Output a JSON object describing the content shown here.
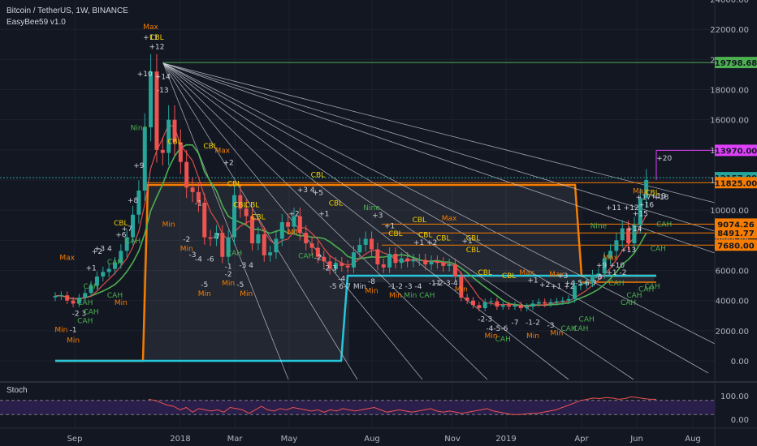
{
  "header": {
    "symbol_line": "Bitcoin / TetherUS, 1W, BINANCE",
    "indicator": "EasyBee59 v1.0",
    "stoch_label": "Stoch"
  },
  "colors": {
    "background": "#131722",
    "up": "#26a69a",
    "down": "#ef5350",
    "orange": "#f57c00",
    "cyan": "#26c6da",
    "green": "#4caf50",
    "magenta": "#e040fb",
    "stoch": "#ef5350",
    "stoch_band": "#2a1e4a"
  },
  "chart_data": [
    {
      "type": "candlestick",
      "ylim": [
        -800,
        24000
      ],
      "price_labels": [
        "24000.00",
        "22000.00",
        "20000.00",
        "18000.00",
        "16000.00",
        "14000.00",
        "12000.00",
        "10000.00",
        "8000.00",
        "6000.00",
        "4000.00",
        "2000.00",
        "0.00"
      ],
      "x_labels": [
        "Sep",
        "2018",
        "Mar",
        "May",
        "Aug",
        "Nov",
        "2019",
        "Apr",
        "Jun",
        "Aug"
      ],
      "level_badges": [
        {
          "label": "19798.68",
          "value": 19798.68,
          "color": "#4caf50"
        },
        {
          "label": "13970.00",
          "value": 13970,
          "color": "#e040fb"
        },
        {
          "label": "12157.99",
          "value": 12158,
          "color": "#26a69a"
        },
        {
          "label": "11825.00",
          "value": 11825,
          "color": "#f57c00"
        },
        {
          "label": "9074.26",
          "value": 9074,
          "color": "#f57c00"
        },
        {
          "label": "8491.77",
          "value": 8492,
          "color": "#f57c00"
        },
        {
          "label": "7680.00",
          "value": 7680,
          "color": "#f57c00"
        }
      ],
      "closes": [
        4300,
        4350,
        4000,
        3800,
        4200,
        4500,
        5000,
        5600,
        5900,
        6100,
        6500,
        7300,
        8200,
        9700,
        11300,
        15500,
        19200,
        14000,
        13800,
        16000,
        14500,
        13200,
        11500,
        11200,
        10500,
        8200,
        8100,
        8500,
        6900,
        8200,
        11000,
        10100,
        9600,
        7800,
        8400,
        7000,
        7200,
        8100,
        9200,
        8900,
        9600,
        8500,
        7800,
        7500,
        6900,
        6600,
        6100,
        6500,
        6300,
        6200,
        7200,
        7700,
        8100,
        7400,
        6400,
        6200,
        7100,
        6500,
        6800,
        6600,
        6700,
        6700,
        6400,
        6600,
        6500,
        6300,
        6400,
        5600,
        4200,
        4000,
        3700,
        3500,
        3900,
        3950,
        3600,
        3700,
        3600,
        3700,
        3500,
        3600,
        3800,
        3900,
        3800,
        3900,
        3950,
        4000,
        4100,
        5000,
        5100,
        5200,
        5700,
        5800,
        6800,
        7300,
        8000,
        8800,
        7800,
        9000,
        10800,
        12000
      ],
      "annotations": [
        {
          "t": "Max",
          "i": 16,
          "v": 22000,
          "c": "#f57c00"
        },
        {
          "t": "+11",
          "i": 16,
          "v": 21300,
          "c": "#d1d4dc"
        },
        {
          "t": "CBL",
          "i": 17,
          "v": 21300,
          "c": "#f5d300"
        },
        {
          "t": "+12",
          "i": 17,
          "v": 20700,
          "c": "#d1d4dc"
        },
        {
          "t": "+10",
          "i": 15,
          "v": 18900,
          "c": "#d1d4dc"
        },
        {
          "t": "+14",
          "i": 18,
          "v": 18700,
          "c": "#d1d4dc"
        },
        {
          "t": "-13",
          "i": 18,
          "v": 17800,
          "c": "#d1d4dc"
        },
        {
          "t": "Nine",
          "i": 14,
          "v": 15300,
          "c": "#4caf50"
        },
        {
          "t": "+9",
          "i": 14,
          "v": 12800,
          "c": "#d1d4dc"
        },
        {
          "t": "CBL",
          "i": 20,
          "v": 14400,
          "c": "#f5d300"
        },
        {
          "t": "CBL",
          "i": 26,
          "v": 14100,
          "c": "#f5d300"
        },
        {
          "t": "Max",
          "i": 28,
          "v": 13800,
          "c": "#f57c00"
        },
        {
          "t": "+2",
          "i": 29,
          "v": 13000,
          "c": "#d1d4dc"
        },
        {
          "t": "+8",
          "i": 13,
          "v": 10500,
          "c": "#d1d4dc"
        },
        {
          "t": "CBL",
          "i": 11,
          "v": 9000,
          "c": "#f5d300"
        },
        {
          "t": "+7",
          "i": 12,
          "v": 8600,
          "c": "#d1d4dc"
        },
        {
          "t": "CAH",
          "i": 13,
          "v": 7800,
          "c": "#4caf50"
        },
        {
          "t": "+6",
          "i": 11,
          "v": 8200,
          "c": "#d1d4dc"
        },
        {
          "t": "+3 4",
          "i": 8,
          "v": 7300,
          "c": "#d1d4dc"
        },
        {
          "t": "+2",
          "i": 7,
          "v": 7100,
          "c": "#d1d4dc"
        },
        {
          "t": "CAH",
          "i": 10,
          "v": 6400,
          "c": "#4caf50"
        },
        {
          "t": "Max",
          "i": 2,
          "v": 6700,
          "c": "#f57c00"
        },
        {
          "t": "+1",
          "i": 6,
          "v": 6000,
          "c": "#d1d4dc"
        },
        {
          "t": "CAH",
          "i": 6,
          "v": 4800,
          "c": "#4caf50"
        },
        {
          "t": "CAH",
          "i": 10,
          "v": 4200,
          "c": "#4caf50"
        },
        {
          "t": "CAH",
          "i": 5,
          "v": 3700,
          "c": "#4caf50"
        },
        {
          "t": "-2 3",
          "i": 4,
          "v": 3000,
          "c": "#d1d4dc"
        },
        {
          "t": "CAH",
          "i": 6,
          "v": 3100,
          "c": "#4caf50"
        },
        {
          "t": "Min",
          "i": 11,
          "v": 3700,
          "c": "#f57c00"
        },
        {
          "t": "CAH",
          "i": 5,
          "v": 2500,
          "c": "#4caf50"
        },
        {
          "t": "Min",
          "i": 1,
          "v": 1900,
          "c": "#f57c00"
        },
        {
          "t": "-1",
          "i": 3,
          "v": 1900,
          "c": "#d1d4dc"
        },
        {
          "t": "Min",
          "i": 3,
          "v": 1200,
          "c": "#f57c00"
        },
        {
          "t": "Min",
          "i": 19,
          "v": 8900,
          "c": "#f57c00"
        },
        {
          "t": "-1",
          "i": 24,
          "v": 10300,
          "c": "#d1d4dc"
        },
        {
          "t": "CBL",
          "i": 30,
          "v": 11600,
          "c": "#f5d300"
        },
        {
          "t": "CBL",
          "i": 33,
          "v": 10200,
          "c": "#f5d300"
        },
        {
          "t": "-2",
          "i": 22,
          "v": 7900,
          "c": "#d1d4dc"
        },
        {
          "t": "Min",
          "i": 22,
          "v": 7300,
          "c": "#f57c00"
        },
        {
          "t": "-7",
          "i": 27,
          "v": 8100,
          "c": "#d1d4dc"
        },
        {
          "t": "-3",
          "i": 23,
          "v": 6900,
          "c": "#d1d4dc"
        },
        {
          "t": "-4",
          "i": 24,
          "v": 6600,
          "c": "#d1d4dc"
        },
        {
          "t": "-6",
          "i": 26,
          "v": 6600,
          "c": "#d1d4dc"
        },
        {
          "t": "CAH",
          "i": 30,
          "v": 7000,
          "c": "#4caf50"
        },
        {
          "t": "-1",
          "i": 29,
          "v": 6100,
          "c": "#d1d4dc"
        },
        {
          "t": "-3 4",
          "i": 32,
          "v": 6200,
          "c": "#d1d4dc"
        },
        {
          "t": "-5",
          "i": 25,
          "v": 4900,
          "c": "#d1d4dc"
        },
        {
          "t": "Min",
          "i": 25,
          "v": 4300,
          "c": "#f57c00"
        },
        {
          "t": "-2",
          "i": 29,
          "v": 5600,
          "c": "#d1d4dc"
        },
        {
          "t": "Min",
          "i": 29,
          "v": 5000,
          "c": "#f57c00"
        },
        {
          "t": "-5",
          "i": 31,
          "v": 4900,
          "c": "#d1d4dc"
        },
        {
          "t": "Min",
          "i": 32,
          "v": 4300,
          "c": "#f57c00"
        },
        {
          "t": "CBL",
          "i": 31,
          "v": 10200,
          "c": "#f5d300"
        },
        {
          "t": "CBL",
          "i": 34,
          "v": 9400,
          "c": "#f5d300"
        },
        {
          "t": "+2",
          "i": 40,
          "v": 9600,
          "c": "#d1d4dc"
        },
        {
          "t": "+3 4",
          "i": 42,
          "v": 11200,
          "c": "#d1d4dc"
        },
        {
          "t": "+5",
          "i": 44,
          "v": 11000,
          "c": "#d1d4dc"
        },
        {
          "t": "CBL",
          "i": 44,
          "v": 12200,
          "c": "#f5d300"
        },
        {
          "t": "CBL",
          "i": 47,
          "v": 10300,
          "c": "#f5d300"
        },
        {
          "t": "+1",
          "i": 45,
          "v": 9600,
          "c": "#d1d4dc"
        },
        {
          "t": "Min",
          "i": 40,
          "v": 8400,
          "c": "#f57c00"
        },
        {
          "t": "CAH",
          "i": 42,
          "v": 6800,
          "c": "#4caf50"
        },
        {
          "t": "-2",
          "i": 44,
          "v": 6700,
          "c": "#d1d4dc"
        },
        {
          "t": "-2 3",
          "i": 46,
          "v": 6000,
          "c": "#d1d4dc"
        },
        {
          "t": "-5 6-7 Min",
          "i": 49,
          "v": 4800,
          "c": "#d1d4dc"
        },
        {
          "t": "-4",
          "i": 48,
          "v": 5300,
          "c": "#d1d4dc"
        },
        {
          "t": "Nine",
          "i": 53,
          "v": 10000,
          "c": "#4caf50"
        },
        {
          "t": "+3",
          "i": 54,
          "v": 9500,
          "c": "#d1d4dc"
        },
        {
          "t": "+1",
          "i": 56,
          "v": 8800,
          "c": "#d1d4dc"
        },
        {
          "t": "CBL",
          "i": 57,
          "v": 8300,
          "c": "#f5d300"
        },
        {
          "t": "CBL",
          "i": 61,
          "v": 9200,
          "c": "#f5d300"
        },
        {
          "t": "CBL",
          "i": 62,
          "v": 8200,
          "c": "#f5d300"
        },
        {
          "t": "Max",
          "i": 66,
          "v": 9300,
          "c": "#f57c00"
        },
        {
          "t": "CBL",
          "i": 65,
          "v": 8000,
          "c": "#f5d300"
        },
        {
          "t": "+1 +2",
          "i": 62,
          "v": 7700,
          "c": "#d1d4dc"
        },
        {
          "t": "CBL",
          "i": 70,
          "v": 8000,
          "c": "#f5d300"
        },
        {
          "t": "+1",
          "i": 69,
          "v": 7800,
          "c": "#d1d4dc"
        },
        {
          "t": "CBL",
          "i": 70,
          "v": 7200,
          "c": "#f5d300"
        },
        {
          "t": "CBL",
          "i": 72,
          "v": 5700,
          "c": "#f5d300"
        },
        {
          "t": "CBL",
          "i": 76,
          "v": 5500,
          "c": "#f5d300"
        },
        {
          "t": "-8",
          "i": 53,
          "v": 5100,
          "c": "#d1d4dc"
        },
        {
          "t": "Min",
          "i": 53,
          "v": 4500,
          "c": "#f57c00"
        },
        {
          "t": "-1-2",
          "i": 57,
          "v": 4800,
          "c": "#d1d4dc"
        },
        {
          "t": "-3 -4",
          "i": 60,
          "v": 4800,
          "c": "#d1d4dc"
        },
        {
          "t": "Min",
          "i": 57,
          "v": 4200,
          "c": "#f57c00"
        },
        {
          "t": "Min CAH",
          "i": 61,
          "v": 4200,
          "c": "#4caf50"
        },
        {
          "t": "-1",
          "i": 64,
          "v": 5000,
          "c": "#d1d4dc"
        },
        {
          "t": "-1-2-3-4",
          "i": 65,
          "v": 5000,
          "c": "#d1d4dc"
        },
        {
          "t": "Min",
          "i": 68,
          "v": 4600,
          "c": "#f57c00"
        },
        {
          "t": "-2-3",
          "i": 72,
          "v": 2600,
          "c": "#d1d4dc"
        },
        {
          "t": "-4-5-6",
          "i": 74,
          "v": 2000,
          "c": "#d1d4dc"
        },
        {
          "t": "-7",
          "i": 77,
          "v": 2400,
          "c": "#d1d4dc"
        },
        {
          "t": "CAH",
          "i": 75,
          "v": 1300,
          "c": "#4caf50"
        },
        {
          "t": "Min",
          "i": 73,
          "v": 1500,
          "c": "#f57c00"
        },
        {
          "t": "-1-2",
          "i": 80,
          "v": 2400,
          "c": "#d1d4dc"
        },
        {
          "t": "-3",
          "i": 83,
          "v": 2200,
          "c": "#d1d4dc"
        },
        {
          "t": "Min",
          "i": 80,
          "v": 1500,
          "c": "#f57c00"
        },
        {
          "t": "Max",
          "i": 79,
          "v": 5700,
          "c": "#f57c00"
        },
        {
          "t": "+1",
          "i": 80,
          "v": 5200,
          "c": "#d1d4dc"
        },
        {
          "t": "+2",
          "i": 82,
          "v": 4900,
          "c": "#d1d4dc"
        },
        {
          "t": "Max",
          "i": 84,
          "v": 5600,
          "c": "#f57c00"
        },
        {
          "t": "+3",
          "i": 85,
          "v": 5500,
          "c": "#d1d4dc"
        },
        {
          "t": "+4-5-6-7",
          "i": 88,
          "v": 5000,
          "c": "#d1d4dc"
        },
        {
          "t": "-8",
          "i": 91,
          "v": 5400,
          "c": "#d1d4dc"
        },
        {
          "t": "+1 +2",
          "i": 85,
          "v": 4800,
          "c": "#d1d4dc"
        },
        {
          "t": "CAH",
          "i": 86,
          "v": 2000,
          "c": "#4caf50"
        },
        {
          "t": "CAH",
          "i": 88,
          "v": 2000,
          "c": "#4caf50"
        },
        {
          "t": "CAH",
          "i": 89,
          "v": 2600,
          "c": "#4caf50"
        },
        {
          "t": "Min",
          "i": 84,
          "v": 1700,
          "c": "#f57c00"
        },
        {
          "t": "Max",
          "i": 93,
          "v": 6700,
          "c": "#f57c00"
        },
        {
          "t": "+9 +10",
          "i": 93,
          "v": 6200,
          "c": "#d1d4dc"
        },
        {
          "t": "CAH",
          "i": 94,
          "v": 5000,
          "c": "#4caf50"
        },
        {
          "t": "+1 -2",
          "i": 94,
          "v": 5700,
          "c": "#d1d4dc"
        },
        {
          "t": "+13",
          "i": 96,
          "v": 7200,
          "c": "#d1d4dc"
        },
        {
          "t": "+14",
          "i": 97,
          "v": 8600,
          "c": "#d1d4dc"
        },
        {
          "t": "+15",
          "i": 98,
          "v": 9600,
          "c": "#d1d4dc"
        },
        {
          "t": "+16",
          "i": 99,
          "v": 10200,
          "c": "#d1d4dc"
        },
        {
          "t": "+17 +18",
          "i": 100,
          "v": 10700,
          "c": "#d1d4dc"
        },
        {
          "t": "Max",
          "i": 98,
          "v": 11100,
          "c": "#f57c00"
        },
        {
          "t": "CBL",
          "i": 100,
          "v": 11000,
          "c": "#f5d300"
        },
        {
          "t": "+19",
          "i": 101,
          "v": 10800,
          "c": "#d1d4dc"
        },
        {
          "t": "CAH",
          "i": 102,
          "v": 8900,
          "c": "#4caf50"
        },
        {
          "t": "CAH",
          "i": 96,
          "v": 3700,
          "c": "#4caf50"
        },
        {
          "t": "CAH",
          "i": 97,
          "v": 4200,
          "c": "#4caf50"
        },
        {
          "t": "CAH",
          "i": 99,
          "v": 4600,
          "c": "#4caf50"
        },
        {
          "t": "CAH",
          "i": 100,
          "v": 4800,
          "c": "#4caf50"
        },
        {
          "t": "CAH",
          "i": 101,
          "v": 7300,
          "c": "#4caf50"
        },
        {
          "t": "+20",
          "i": 102,
          "v": 13300,
          "c": "#d1d4dc"
        },
        {
          "t": "Nine",
          "i": 91,
          "v": 8800,
          "c": "#4caf50"
        },
        {
          "t": "+11 +12",
          "i": 95,
          "v": 10000,
          "c": "#d1d4dc"
        }
      ]
    },
    {
      "type": "line",
      "title": "Stoch",
      "tick_labels": [
        "100.00",
        "0.00"
      ],
      "ylim": [
        -20,
        120
      ],
      "bands": [
        80,
        20
      ],
      "values": [
        85,
        80,
        70,
        60,
        55,
        40,
        50,
        30,
        45,
        40,
        35,
        40,
        30,
        50,
        45,
        40,
        25,
        40,
        55,
        40,
        35,
        45,
        40,
        50,
        45,
        40,
        35,
        40,
        30,
        40,
        35,
        45,
        40,
        35,
        40,
        45,
        50,
        40,
        30,
        35,
        40,
        35,
        30,
        35,
        40,
        45,
        35,
        30,
        35,
        30,
        25,
        30,
        35,
        40,
        45,
        35,
        30,
        25,
        20,
        20,
        22,
        25,
        25,
        30,
        35,
        40,
        50,
        60,
        70,
        80,
        85,
        90,
        88,
        92,
        90,
        85,
        88,
        95,
        92,
        88,
        85,
        85
      ]
    }
  ]
}
